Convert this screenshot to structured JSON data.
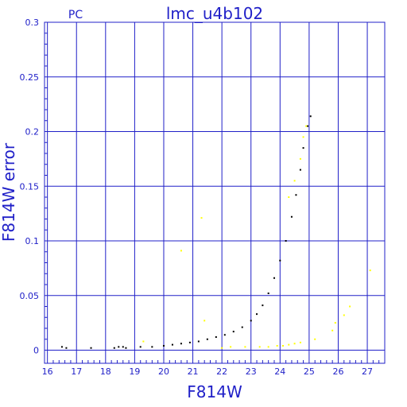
{
  "chart_data": {
    "type": "scatter",
    "title": "lmc_u4b102",
    "subtitle": "PC",
    "xlabel": "F814W",
    "ylabel": "F814W error",
    "xlim": [
      15.9,
      27.6
    ],
    "ylim": [
      -0.012,
      0.3
    ],
    "grid": true,
    "x_ticks": [
      16,
      17,
      18,
      19,
      20,
      21,
      22,
      23,
      24,
      25,
      26,
      27
    ],
    "y_ticks": [
      0,
      0.05,
      0.1,
      0.15,
      0.2,
      0.25,
      0.3
    ],
    "series": [
      {
        "color": "#000000",
        "points": [
          [
            16.5,
            0.003
          ],
          [
            16.65,
            0.002
          ],
          [
            17.5,
            0.002
          ],
          [
            18.3,
            0.002
          ],
          [
            18.45,
            0.003
          ],
          [
            18.6,
            0.003
          ],
          [
            18.7,
            0.002
          ],
          [
            19.2,
            0.003
          ],
          [
            19.6,
            0.003
          ],
          [
            20.0,
            0.004
          ],
          [
            20.3,
            0.005
          ],
          [
            20.6,
            0.006
          ],
          [
            20.9,
            0.007
          ],
          [
            21.2,
            0.008
          ],
          [
            21.5,
            0.01
          ],
          [
            21.8,
            0.012
          ],
          [
            22.1,
            0.014
          ],
          [
            22.4,
            0.017
          ],
          [
            22.7,
            0.021
          ],
          [
            23.0,
            0.027
          ],
          [
            23.2,
            0.033
          ],
          [
            23.4,
            0.041
          ],
          [
            23.6,
            0.052
          ],
          [
            23.8,
            0.066
          ],
          [
            24.0,
            0.082
          ],
          [
            24.2,
            0.1
          ],
          [
            24.4,
            0.122
          ],
          [
            24.55,
            0.142
          ],
          [
            24.7,
            0.165
          ],
          [
            24.8,
            0.185
          ],
          [
            24.95,
            0.205
          ],
          [
            25.05,
            0.214
          ]
        ]
      },
      {
        "color": "#ffff00",
        "points": [
          [
            19.3,
            0.008
          ],
          [
            20.6,
            0.091
          ],
          [
            21.3,
            0.121
          ],
          [
            21.4,
            0.027
          ],
          [
            22.0,
            0.002
          ],
          [
            22.3,
            0.003
          ],
          [
            22.8,
            0.003
          ],
          [
            23.3,
            0.003
          ],
          [
            23.6,
            0.003
          ],
          [
            23.9,
            0.004
          ],
          [
            24.1,
            0.004
          ],
          [
            24.3,
            0.005
          ],
          [
            24.5,
            0.006
          ],
          [
            24.7,
            0.007
          ],
          [
            25.2,
            0.01
          ],
          [
            25.8,
            0.018
          ],
          [
            25.9,
            0.025
          ],
          [
            26.2,
            0.032
          ],
          [
            26.4,
            0.04
          ],
          [
            27.1,
            0.073
          ],
          [
            24.3,
            0.14
          ],
          [
            24.5,
            0.155
          ],
          [
            24.7,
            0.175
          ],
          [
            24.8,
            0.195
          ],
          [
            24.9,
            0.205
          ]
        ]
      }
    ]
  }
}
